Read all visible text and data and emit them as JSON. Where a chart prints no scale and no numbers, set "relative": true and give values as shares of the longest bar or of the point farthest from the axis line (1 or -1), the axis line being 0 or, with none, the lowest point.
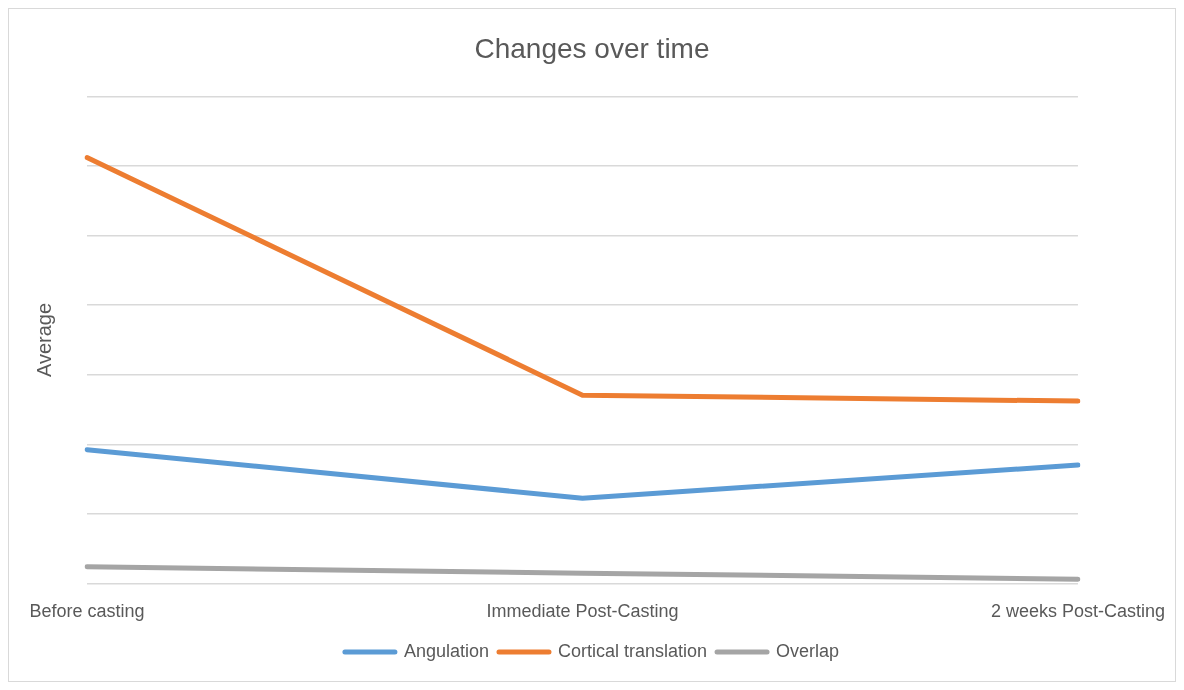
{
  "chart_data": {
    "type": "line",
    "title": "Changes over time",
    "ylabel": "Average",
    "relative": true,
    "categories": [
      "Before casting",
      "Immediate Post-Casting",
      "2 weeks Post-Casting"
    ],
    "series": [
      {
        "name": "Angulation",
        "color": "#5b9bd5",
        "values": [
          0.314,
          0.2,
          0.278
        ]
      },
      {
        "name": "Cortical translation",
        "color": "#ed7d31",
        "values": [
          1,
          0.442,
          0.428
        ]
      },
      {
        "name": "Overlap",
        "color": "#a5a5a5",
        "values": [
          0.039,
          0.024,
          0.01
        ]
      }
    ],
    "grid": "y",
    "legend": "bottom",
    "marker": "none",
    "line_style": "solid"
  }
}
